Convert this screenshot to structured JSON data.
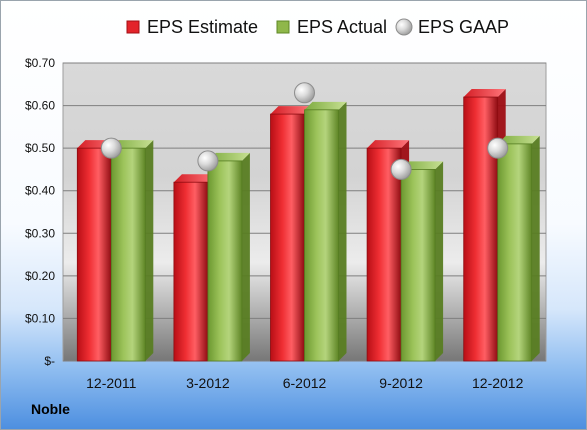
{
  "chart_data": {
    "type": "bar",
    "categories": [
      "12-2011",
      "3-2012",
      "6-2012",
      "9-2012",
      "12-2012"
    ],
    "series": [
      {
        "name": "EPS Estimate",
        "values": [
          0.5,
          0.42,
          0.58,
          0.5,
          0.62
        ],
        "color": "#e3242b",
        "kind": "bar"
      },
      {
        "name": "EPS Actual",
        "values": [
          0.5,
          0.47,
          0.59,
          0.45,
          0.51
        ],
        "color": "#8fb74a",
        "kind": "bar"
      },
      {
        "name": "EPS GAAP",
        "values": [
          0.5,
          0.47,
          0.63,
          0.45,
          0.5
        ],
        "color": "#b8b8b8",
        "kind": "marker"
      }
    ],
    "yticks": [
      "$-",
      "$0.10",
      "$0.20",
      "$0.30",
      "$0.40",
      "$0.50",
      "$0.60",
      "$0.70"
    ],
    "ylim": [
      0,
      0.7
    ],
    "grid": true,
    "legend": "top"
  },
  "footer": {
    "company": "Noble"
  }
}
